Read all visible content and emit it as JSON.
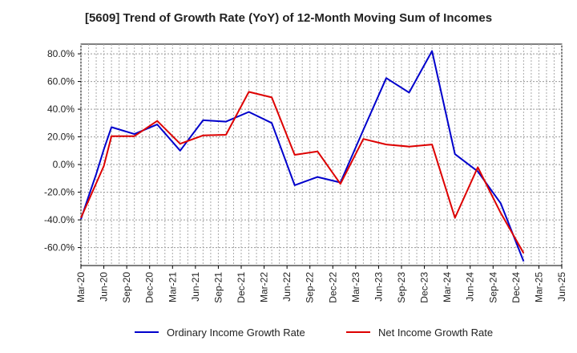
{
  "chart_data": {
    "type": "line",
    "title": "[5609]  Trend of Growth Rate (YoY) of 12-Month Moving Sum of Incomes",
    "x_tick_labels": [
      "Mar-20",
      "Jun-20",
      "Sep-20",
      "Dec-20",
      "Mar-21",
      "Jun-21",
      "Sep-21",
      "Dec-21",
      "Mar-22",
      "Jun-22",
      "Sep-22",
      "Dec-22",
      "Mar-23",
      "Jun-23",
      "Sep-23",
      "Dec-23",
      "Mar-24",
      "Jun-24",
      "Sep-24",
      "Dec-24",
      "Mar-25",
      "Jun-25"
    ],
    "x_months": [
      "2020-03",
      "2020-04",
      "2020-05",
      "2020-06",
      "2020-07",
      "2020-08",
      "2020-09",
      "2020-10",
      "2020-11",
      "2020-12",
      "2021-01",
      "2021-02",
      "2021-03",
      "2021-04",
      "2021-05",
      "2021-06",
      "2021-07",
      "2021-08",
      "2021-09",
      "2021-10",
      "2021-11",
      "2021-12",
      "2022-01",
      "2022-02",
      "2022-03",
      "2022-04",
      "2022-05",
      "2022-06",
      "2022-07",
      "2022-08",
      "2022-09",
      "2022-10",
      "2022-11",
      "2022-12",
      "2023-01",
      "2023-02",
      "2023-03",
      "2023-04",
      "2023-05",
      "2023-06",
      "2023-07",
      "2023-08",
      "2023-09",
      "2023-10",
      "2023-11",
      "2023-12",
      "2024-01",
      "2024-02",
      "2024-03",
      "2024-04",
      "2024-05",
      "2024-06",
      "2024-07",
      "2024-08",
      "2024-09",
      "2024-10",
      "2024-11",
      "2024-12",
      "2025-01",
      "2025-02",
      "2025-03",
      "2025-04",
      "2025-05",
      "2025-06"
    ],
    "series": [
      {
        "name": "Ordinary Income Growth Rate",
        "color": "#0000cc",
        "values": [
          -39.5,
          -23,
          -7,
          11,
          27,
          null,
          null,
          22,
          null,
          null,
          29,
          null,
          null,
          10,
          null,
          null,
          32,
          null,
          null,
          31,
          null,
          null,
          38,
          null,
          null,
          30,
          null,
          null,
          -15,
          null,
          null,
          -9,
          null,
          null,
          -13,
          null,
          null,
          25,
          null,
          null,
          62.5,
          null,
          null,
          52,
          null,
          null,
          82,
          null,
          null,
          7.5,
          null,
          null,
          -5,
          null,
          null,
          -28,
          null,
          null,
          -70,
          null,
          null,
          null
        ]
      },
      {
        "name": "Net Income Growth Rate",
        "color": "#dd0000",
        "values": [
          -38.5,
          null,
          null,
          -1,
          20.5,
          null,
          null,
          20.5,
          null,
          null,
          31.5,
          null,
          null,
          15,
          null,
          null,
          21,
          null,
          null,
          21.5,
          null,
          null,
          52.5,
          null,
          null,
          48.5,
          null,
          null,
          7,
          null,
          null,
          9.5,
          null,
          null,
          -14,
          null,
          null,
          18.5,
          null,
          null,
          14.5,
          null,
          null,
          13,
          null,
          null,
          14.5,
          null,
          null,
          -38.5,
          null,
          null,
          -2,
          null,
          null,
          -35,
          null,
          null,
          -64,
          null,
          null,
          null
        ]
      }
    ],
    "y_tick_labels": [
      "80.0%",
      "60.0%",
      "40.0%",
      "20.0%",
      "0.0%",
      "-20.0%",
      "-40.0%",
      "-60.0%"
    ],
    "y_ticks": [
      80,
      60,
      40,
      20,
      0,
      -20,
      -40,
      -60
    ],
    "ylim": [
      -73,
      87
    ],
    "grid": true,
    "legend_position": "bottom"
  }
}
